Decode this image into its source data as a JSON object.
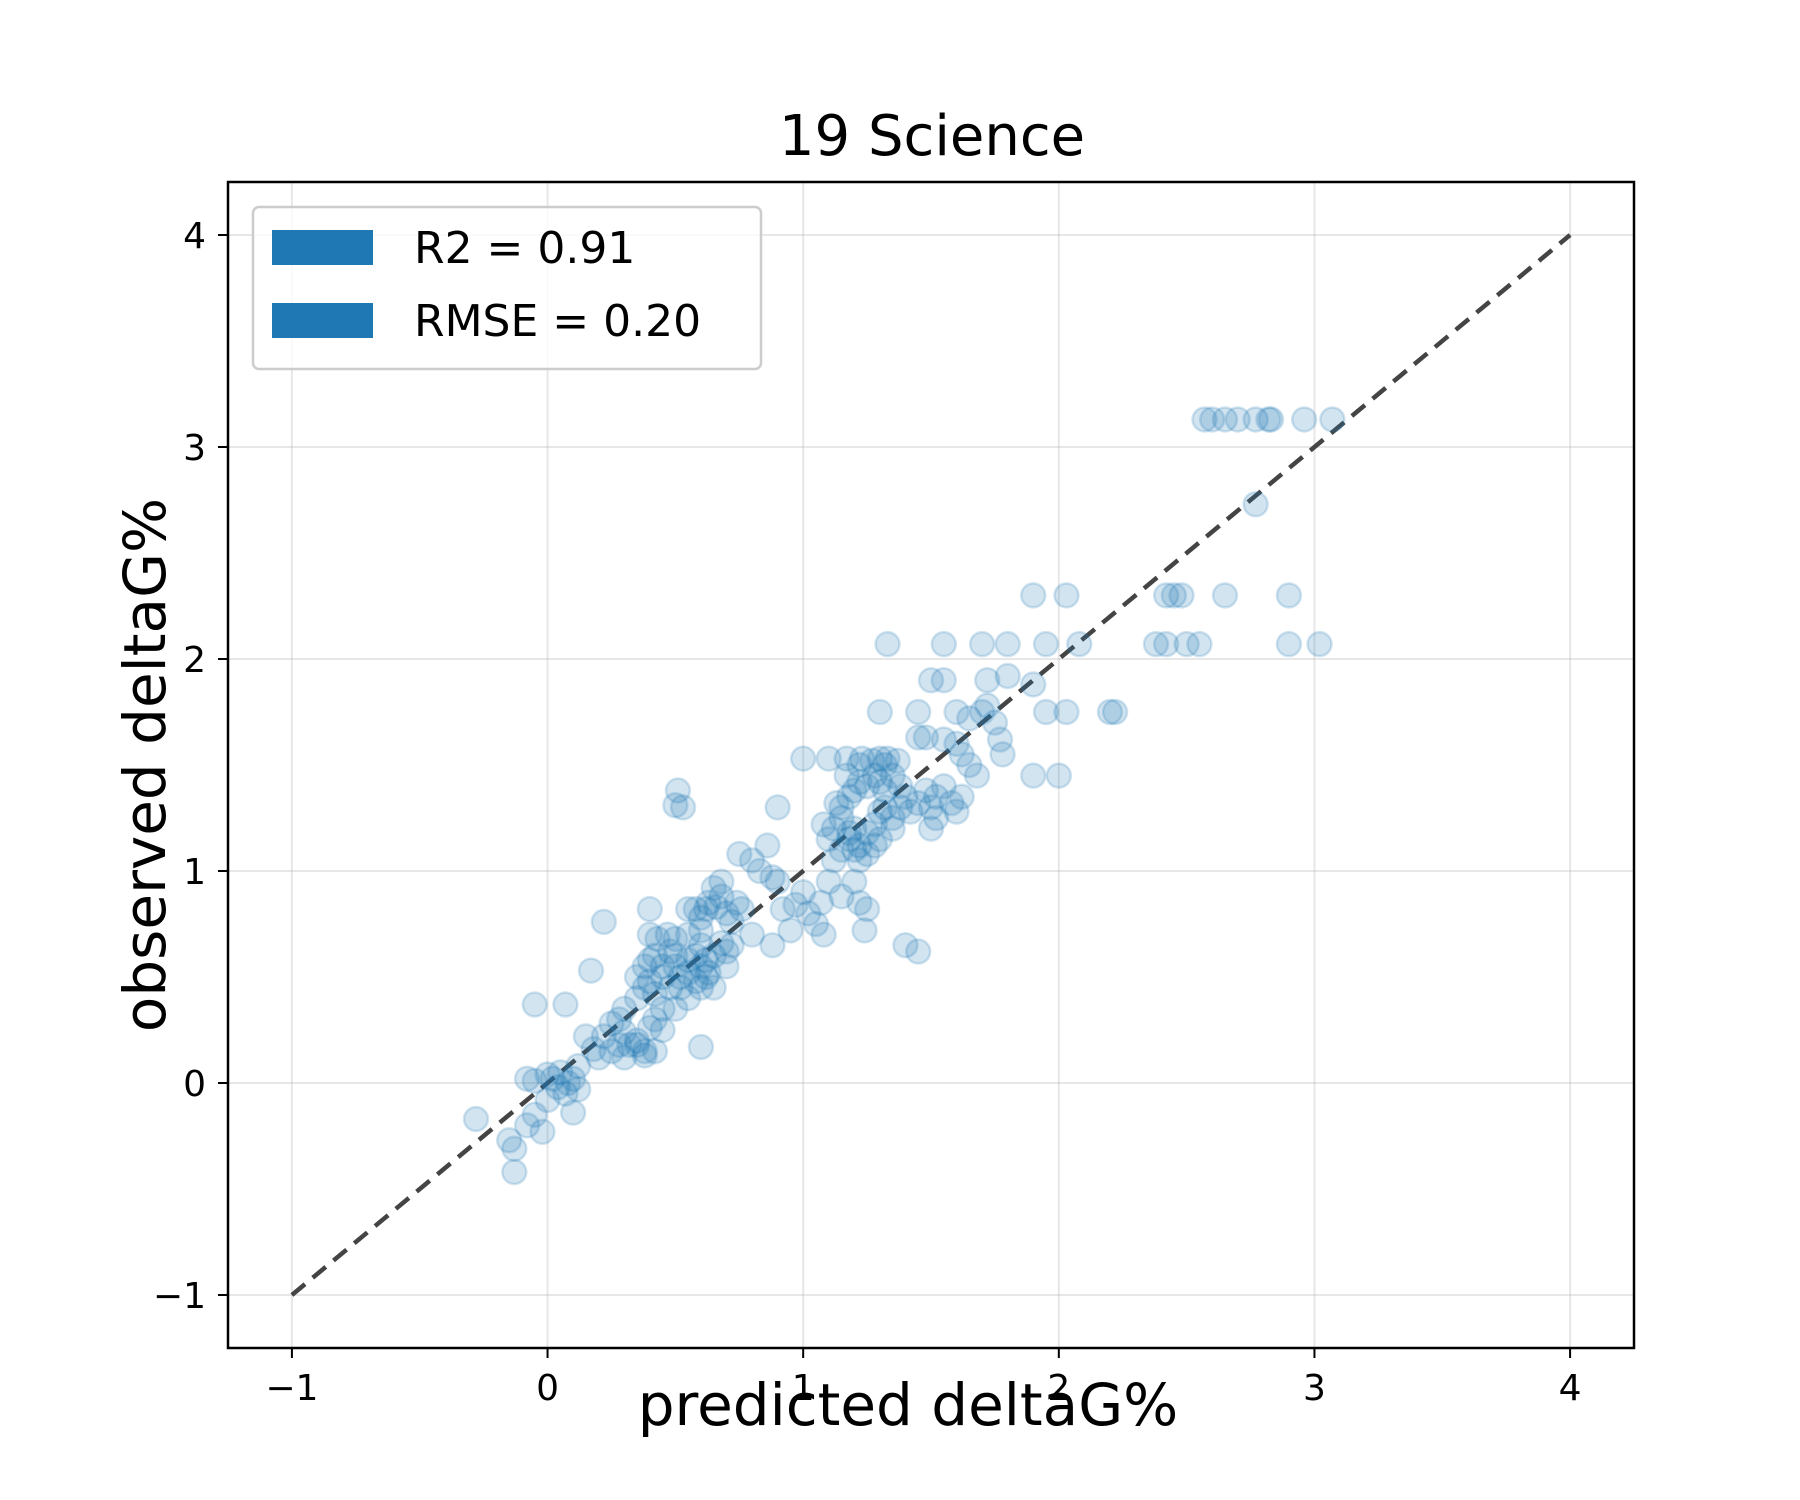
{
  "chart_data": {
    "type": "scatter",
    "title": "19 Science",
    "xlabel": "predicted deltaG%",
    "ylabel": "observed deltaG%",
    "xlim": [
      -1.25,
      4.25
    ],
    "ylim": [
      -1.25,
      4.25
    ],
    "xticks": [
      -1,
      0,
      1,
      2,
      3,
      4
    ],
    "yticks": [
      -1,
      0,
      1,
      2,
      3,
      4
    ],
    "xtick_labels": [
      "−1",
      "0",
      "1",
      "2",
      "3",
      "4"
    ],
    "ytick_labels": [
      "−1",
      "0",
      "1",
      "2",
      "3",
      "4"
    ],
    "grid": true,
    "legend_position": "top-left",
    "legend": [
      {
        "label": "R2 = 0.91",
        "color": "#1f77b4"
      },
      {
        "label": "RMSE = 0.20",
        "color": "#1f77b4"
      }
    ],
    "reference_line": {
      "x": [
        -1,
        4
      ],
      "y": [
        -1,
        4
      ],
      "style": "dashed",
      "color": "#444444"
    },
    "marker_color": "#1f77b4",
    "marker_alpha": 0.2,
    "points": [
      [
        -0.28,
        -0.17
      ],
      [
        -0.15,
        -0.27
      ],
      [
        -0.13,
        -0.42
      ],
      [
        -0.13,
        -0.31
      ],
      [
        -0.08,
        -0.2
      ],
      [
        -0.05,
        -0.15
      ],
      [
        -0.02,
        -0.23
      ],
      [
        0.0,
        -0.08
      ],
      [
        -0.08,
        0.02
      ],
      [
        0.02,
        0.02
      ],
      [
        0.05,
        0.05
      ],
      [
        0.07,
        -0.05
      ],
      [
        0.08,
        0.0
      ],
      [
        0.1,
        0.02
      ],
      [
        0.12,
        -0.03
      ],
      [
        0.04,
        -0.02
      ],
      [
        0.1,
        -0.14
      ],
      [
        0.0,
        0.04
      ],
      [
        -0.05,
        0.01
      ],
      [
        0.12,
        0.08
      ],
      [
        -0.05,
        0.37
      ],
      [
        0.07,
        0.37
      ],
      [
        0.18,
        0.16
      ],
      [
        0.22,
        0.22
      ],
      [
        0.25,
        0.28
      ],
      [
        0.28,
        0.3
      ],
      [
        0.3,
        0.24
      ],
      [
        0.32,
        0.18
      ],
      [
        0.35,
        0.2
      ],
      [
        0.38,
        0.15
      ],
      [
        0.4,
        0.26
      ],
      [
        0.42,
        0.3
      ],
      [
        0.45,
        0.35
      ],
      [
        0.3,
        0.35
      ],
      [
        0.35,
        0.4
      ],
      [
        0.38,
        0.45
      ],
      [
        0.4,
        0.48
      ],
      [
        0.42,
        0.42
      ],
      [
        0.45,
        0.5
      ],
      [
        0.48,
        0.45
      ],
      [
        0.5,
        0.55
      ],
      [
        0.52,
        0.5
      ],
      [
        0.55,
        0.58
      ],
      [
        0.58,
        0.6
      ],
      [
        0.6,
        0.55
      ],
      [
        0.5,
        0.6
      ],
      [
        0.48,
        0.62
      ],
      [
        0.55,
        0.52
      ],
      [
        0.6,
        0.65
      ],
      [
        0.62,
        0.58
      ],
      [
        0.65,
        0.6
      ],
      [
        0.68,
        0.66
      ],
      [
        0.7,
        0.62
      ],
      [
        0.52,
        0.45
      ],
      [
        0.55,
        0.4
      ],
      [
        0.58,
        0.48
      ],
      [
        0.6,
        0.45
      ],
      [
        0.63,
        0.52
      ],
      [
        0.45,
        0.55
      ],
      [
        0.42,
        0.6
      ],
      [
        0.4,
        0.58
      ],
      [
        0.35,
        0.5
      ],
      [
        0.38,
        0.55
      ],
      [
        0.47,
        0.7
      ],
      [
        0.43,
        0.68
      ],
      [
        0.55,
        0.7
      ],
      [
        0.6,
        0.72
      ],
      [
        0.62,
        0.82
      ],
      [
        0.58,
        0.82
      ],
      [
        0.63,
        0.85
      ],
      [
        0.66,
        0.83
      ],
      [
        0.7,
        0.8
      ],
      [
        0.72,
        0.76
      ],
      [
        0.74,
        0.85
      ],
      [
        0.76,
        0.82
      ],
      [
        0.65,
        0.92
      ],
      [
        0.68,
        0.88
      ],
      [
        0.8,
        1.05
      ],
      [
        0.83,
        1.0
      ],
      [
        0.88,
        0.97
      ],
      [
        0.9,
        1.3
      ],
      [
        0.95,
        0.72
      ],
      [
        0.88,
        0.65
      ],
      [
        0.8,
        0.7
      ],
      [
        0.72,
        0.65
      ],
      [
        0.7,
        0.55
      ],
      [
        0.65,
        0.45
      ],
      [
        0.62,
        0.5
      ],
      [
        0.6,
        0.17
      ],
      [
        0.5,
        0.35
      ],
      [
        0.45,
        0.25
      ],
      [
        0.42,
        0.15
      ],
      [
        0.38,
        0.13
      ],
      [
        0.35,
        0.18
      ],
      [
        0.3,
        0.12
      ],
      [
        0.28,
        0.18
      ],
      [
        0.25,
        0.15
      ],
      [
        0.2,
        0.12
      ],
      [
        0.15,
        0.22
      ],
      [
        0.17,
        0.53
      ],
      [
        0.22,
        0.76
      ],
      [
        0.4,
        0.82
      ],
      [
        0.4,
        0.7
      ],
      [
        0.51,
        1.38
      ],
      [
        0.53,
        1.3
      ],
      [
        0.5,
        1.31
      ],
      [
        0.6,
        0.78
      ],
      [
        0.5,
        0.68
      ],
      [
        0.55,
        0.82
      ],
      [
        0.68,
        0.95
      ],
      [
        0.75,
        1.08
      ],
      [
        0.86,
        1.12
      ],
      [
        0.9,
        0.95
      ],
      [
        0.92,
        0.82
      ],
      [
        0.97,
        0.84
      ],
      [
        1.0,
        0.9
      ],
      [
        1.02,
        0.8
      ],
      [
        1.05,
        0.75
      ],
      [
        1.07,
        0.85
      ],
      [
        1.1,
        0.95
      ],
      [
        1.12,
        1.05
      ],
      [
        1.15,
        1.1
      ],
      [
        1.18,
        1.15
      ],
      [
        1.2,
        1.2
      ],
      [
        1.22,
        1.12
      ],
      [
        1.25,
        1.18
      ],
      [
        1.28,
        1.22
      ],
      [
        1.3,
        1.28
      ],
      [
        1.32,
        1.3
      ],
      [
        1.35,
        1.25
      ],
      [
        1.15,
        1.3
      ],
      [
        1.18,
        1.35
      ],
      [
        1.2,
        1.38
      ],
      [
        1.22,
        1.42
      ],
      [
        1.25,
        1.4
      ],
      [
        1.28,
        1.45
      ],
      [
        1.3,
        1.42
      ],
      [
        1.32,
        1.38
      ],
      [
        1.35,
        1.45
      ],
      [
        1.38,
        1.4
      ],
      [
        1.12,
        1.2
      ],
      [
        1.15,
        1.25
      ],
      [
        1.18,
        1.18
      ],
      [
        1.2,
        1.1
      ],
      [
        1.22,
        1.05
      ],
      [
        1.25,
        1.08
      ],
      [
        1.28,
        1.12
      ],
      [
        1.3,
        1.15
      ],
      [
        1.35,
        1.2
      ],
      [
        1.38,
        1.3
      ],
      [
        1.4,
        1.35
      ],
      [
        1.42,
        1.28
      ],
      [
        1.45,
        1.32
      ],
      [
        1.48,
        1.38
      ],
      [
        1.5,
        1.3
      ],
      [
        1.52,
        1.35
      ],
      [
        1.55,
        1.4
      ],
      [
        1.58,
        1.32
      ],
      [
        1.6,
        1.28
      ],
      [
        1.62,
        1.35
      ],
      [
        1.1,
        1.15
      ],
      [
        1.08,
        1.22
      ],
      [
        1.13,
        1.32
      ],
      [
        1.17,
        1.45
      ],
      [
        1.22,
        1.5
      ],
      [
        1.27,
        1.52
      ],
      [
        1.32,
        1.5
      ],
      [
        1.37,
        1.52
      ],
      [
        1.17,
        1.53
      ],
      [
        1.23,
        1.53
      ],
      [
        1.0,
        1.53
      ],
      [
        1.1,
        1.53
      ],
      [
        1.3,
        1.53
      ],
      [
        1.33,
        1.53
      ],
      [
        1.45,
        1.63
      ],
      [
        1.48,
        1.63
      ],
      [
        1.55,
        1.62
      ],
      [
        1.6,
        1.6
      ],
      [
        1.62,
        1.55
      ],
      [
        1.65,
        1.5
      ],
      [
        1.2,
        0.95
      ],
      [
        1.22,
        0.85
      ],
      [
        1.25,
        0.82
      ],
      [
        1.24,
        0.72
      ],
      [
        1.15,
        0.88
      ],
      [
        1.08,
        0.7
      ],
      [
        1.4,
        0.65
      ],
      [
        1.45,
        0.62
      ],
      [
        1.5,
        1.2
      ],
      [
        1.52,
        1.25
      ],
      [
        1.3,
        1.75
      ],
      [
        1.45,
        1.75
      ],
      [
        1.6,
        1.75
      ],
      [
        1.65,
        1.72
      ],
      [
        1.7,
        1.75
      ],
      [
        1.72,
        1.78
      ],
      [
        1.75,
        1.7
      ],
      [
        1.77,
        1.62
      ],
      [
        1.78,
        1.55
      ],
      [
        1.68,
        1.45
      ],
      [
        1.5,
        1.9
      ],
      [
        1.55,
        1.9
      ],
      [
        1.72,
        1.9
      ],
      [
        1.8,
        1.92
      ],
      [
        1.9,
        1.88
      ],
      [
        1.95,
        1.75
      ],
      [
        2.03,
        1.75
      ],
      [
        1.33,
        2.07
      ],
      [
        1.55,
        2.07
      ],
      [
        1.7,
        2.07
      ],
      [
        1.8,
        2.07
      ],
      [
        1.95,
        2.07
      ],
      [
        2.08,
        2.07
      ],
      [
        1.9,
        2.3
      ],
      [
        2.03,
        2.3
      ],
      [
        1.9,
        1.45
      ],
      [
        2.0,
        1.45
      ],
      [
        2.2,
        1.75
      ],
      [
        2.22,
        1.75
      ],
      [
        2.38,
        2.07
      ],
      [
        2.42,
        2.07
      ],
      [
        2.5,
        2.07
      ],
      [
        2.55,
        2.07
      ],
      [
        2.42,
        2.3
      ],
      [
        2.45,
        2.3
      ],
      [
        2.48,
        2.3
      ],
      [
        2.65,
        2.3
      ],
      [
        2.9,
        2.3
      ],
      [
        2.9,
        2.07
      ],
      [
        3.02,
        2.07
      ],
      [
        2.57,
        3.13
      ],
      [
        2.6,
        3.13
      ],
      [
        2.65,
        3.13
      ],
      [
        2.7,
        3.13
      ],
      [
        2.77,
        3.13
      ],
      [
        2.82,
        3.13
      ],
      [
        2.83,
        3.13
      ],
      [
        2.96,
        3.13
      ],
      [
        3.07,
        3.13
      ],
      [
        2.77,
        2.73
      ]
    ]
  }
}
